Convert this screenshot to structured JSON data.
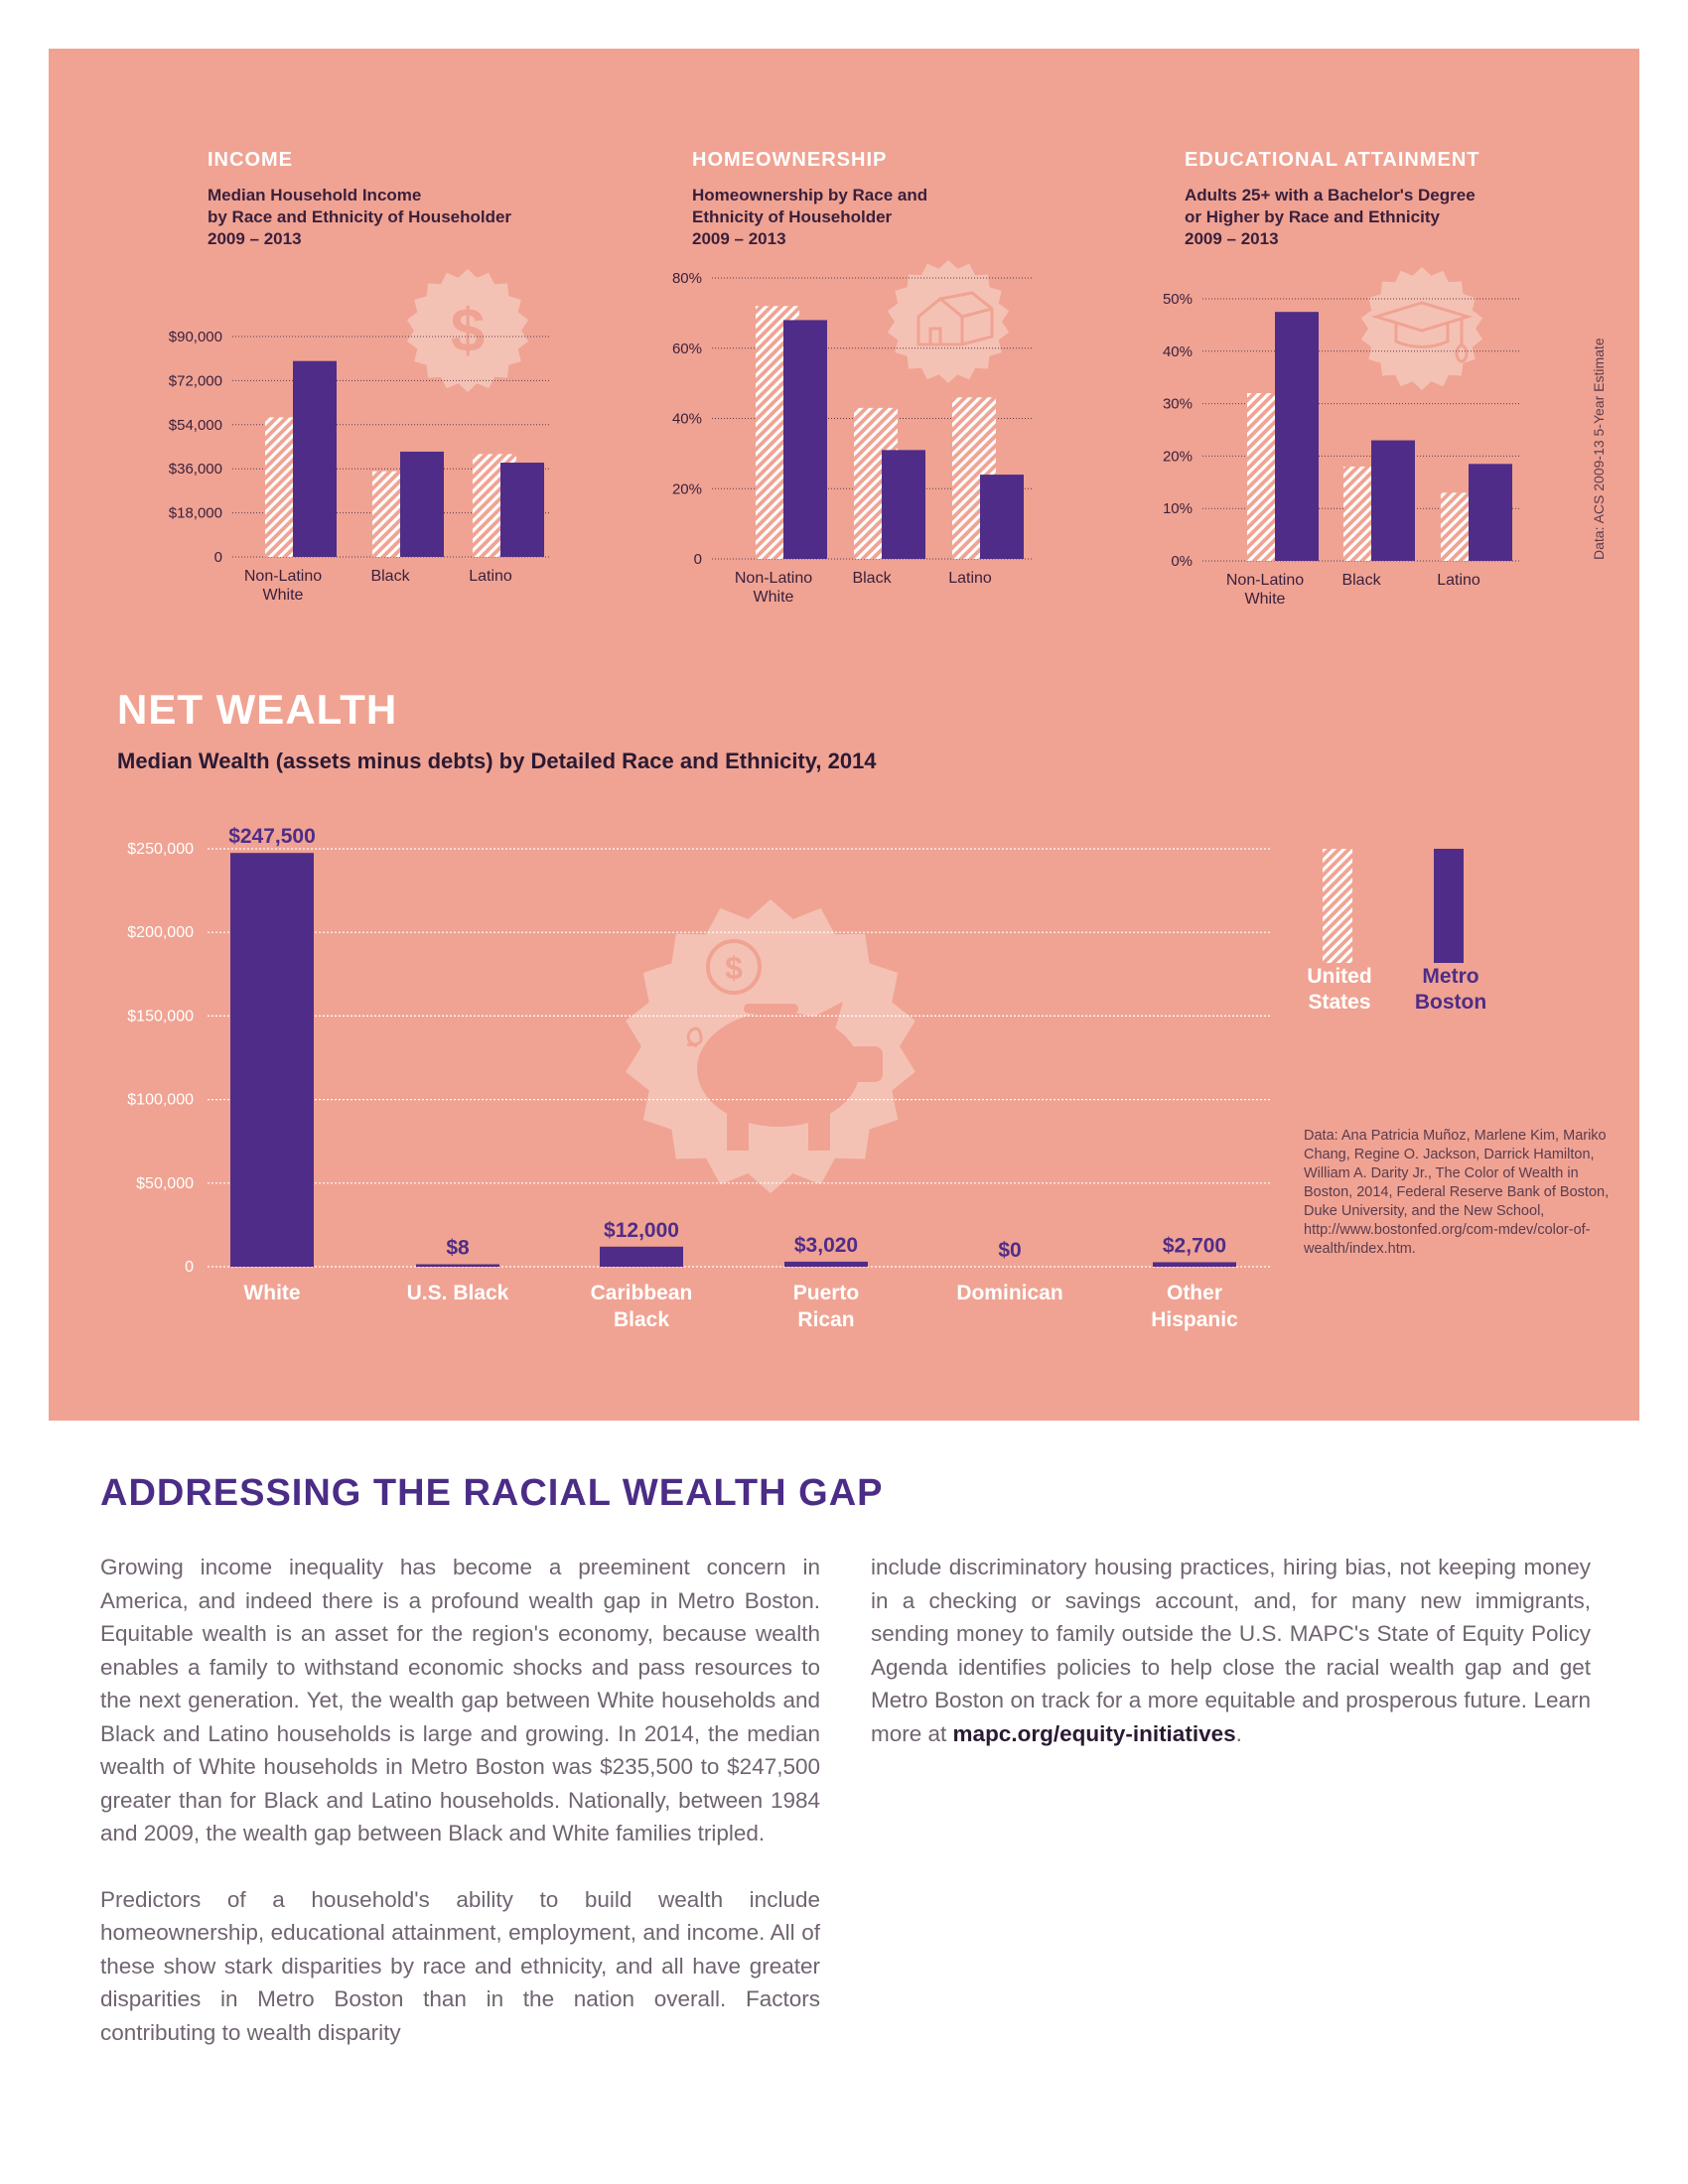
{
  "colors": {
    "panel": "#f0a393",
    "metro": "#4f2c87",
    "us_hatch": "#ffffff",
    "title_purple": "#4b2c86"
  },
  "sections": {
    "income": {
      "title": "INCOME",
      "subtitle": [
        "Median Household Income",
        "by Race and Ethnicity of Householder",
        "2009 – 2013"
      ],
      "icon": "dollar-icon"
    },
    "homeownership": {
      "title": "HOMEOWNERSHIP",
      "subtitle": [
        "Homeownership by Race and",
        "Ethnicity of Householder",
        "2009 – 2013"
      ],
      "icon": "house-icon"
    },
    "education": {
      "title": "EDUCATIONAL ATTAINMENT",
      "subtitle": [
        "Adults 25+ with a Bachelor's Degree",
        "or Higher by Race and Ethnicity",
        "2009 – 2013"
      ],
      "icon": "graduation-cap-icon"
    },
    "source": "Data: ACS 2009-13 5-Year Estimate"
  },
  "net_wealth": {
    "title": "NET WEALTH",
    "subtitle": "Median Wealth (assets minus debts) by Detailed Race and Ethnicity, 2014",
    "icon": "piggy-bank-icon",
    "legend": {
      "us": [
        "United",
        "States"
      ],
      "metro": [
        "Metro",
        "Boston"
      ]
    },
    "source": "Data: Ana Patricia Muñoz, Marlene Kim, Mariko Chang, Regine O. Jackson, Darrick Hamilton, William A. Darity Jr., The Color of Wealth in Boston, 2014, Federal Reserve Bank of Boston, Duke University, and the New School, http://www.bostonfed.org/com-mdev/color-of-wealth/index.htm."
  },
  "chart_data": [
    {
      "id": "income",
      "type": "bar",
      "categories": [
        [
          "Non-Latino",
          "White"
        ],
        [
          "Black"
        ],
        [
          "Latino"
        ]
      ],
      "series": [
        {
          "name": "United States",
          "values": [
            57000,
            35000,
            42000
          ]
        },
        {
          "name": "Metro Boston",
          "values": [
            80000,
            43000,
            38500
          ]
        }
      ],
      "ylim": [
        0,
        90000
      ],
      "yticks": [
        0,
        18000,
        36000,
        54000,
        72000,
        90000
      ],
      "ytick_labels": [
        "0",
        "$18,000",
        "$36,000",
        "$54,000",
        "$72,000",
        "$90,000"
      ]
    },
    {
      "id": "homeownership",
      "type": "bar",
      "categories": [
        [
          "Non-Latino",
          "White"
        ],
        [
          "Black"
        ],
        [
          "Latino"
        ]
      ],
      "series": [
        {
          "name": "United States",
          "values": [
            72,
            43,
            46
          ]
        },
        {
          "name": "Metro Boston",
          "values": [
            68,
            31,
            24
          ]
        }
      ],
      "ylim": [
        0,
        80
      ],
      "yticks": [
        0,
        20,
        40,
        60,
        80
      ],
      "ytick_labels": [
        "0",
        "20%",
        "40%",
        "60%",
        "80%"
      ]
    },
    {
      "id": "education",
      "type": "bar",
      "categories": [
        [
          "Non-Latino",
          "White"
        ],
        [
          "Black"
        ],
        [
          "Latino"
        ]
      ],
      "series": [
        {
          "name": "United States",
          "values": [
            32,
            18,
            13
          ]
        },
        {
          "name": "Metro Boston",
          "values": [
            47.5,
            23,
            18.5
          ]
        }
      ],
      "ylim": [
        0,
        50
      ],
      "yticks": [
        0,
        10,
        20,
        30,
        40,
        50
      ],
      "ytick_labels": [
        "0%",
        "10%",
        "20%",
        "30%",
        "40%",
        "50%"
      ]
    },
    {
      "id": "net_wealth",
      "type": "bar",
      "categories": [
        [
          "White"
        ],
        [
          "U.S. Black"
        ],
        [
          "Caribbean",
          "Black"
        ],
        [
          "Puerto",
          "Rican"
        ],
        [
          "Dominican"
        ],
        [
          "Other",
          "Hispanic"
        ]
      ],
      "series": [
        {
          "name": "Metro Boston",
          "values": [
            247500,
            8,
            12000,
            3020,
            0,
            2700
          ],
          "labels": [
            "$247,500",
            "$8",
            "$12,000",
            "$3,020",
            "$0",
            "$2,700"
          ]
        }
      ],
      "ylim": [
        0,
        250000
      ],
      "yticks": [
        0,
        50000,
        100000,
        150000,
        200000,
        250000
      ],
      "ytick_labels": [
        "0",
        "$50,000",
        "$100,000",
        "$150,000",
        "$200,000",
        "$250,000"
      ]
    }
  ],
  "article": {
    "title": "ADDRESSING THE RACIAL WEALTH GAP",
    "col1": [
      "Growing income inequality has become a preeminent concern in America, and indeed there is a profound wealth gap in Metro Boston. Equitable wealth is an asset for the region's economy, because wealth enables a family to withstand economic shocks and pass resources to the next generation. Yet, the wealth gap between White households and Black and Latino households is large and growing. In 2014, the median wealth of White households in Metro Boston was $235,500 to $247,500 greater than for Black and Latino households. Nationally, between 1984 and 2009, the wealth gap between Black and White families tripled.",
      "Predictors of a household's ability to build wealth include homeownership, educational attainment, employment, and income. All of these show stark disparities by race and ethnicity, and all have greater disparities in Metro Boston than in the nation overall. Factors contributing to wealth disparity"
    ],
    "col2": "include discriminatory housing practices, hiring bias, not keeping money in a checking or savings account, and, for many new immigrants, sending money to family outside the U.S. MAPC's State of Equity Policy Agenda identifies policies to help close the racial wealth gap and get Metro Boston on track for a more equitable and prosperous future. Learn more at",
    "link": "mapc.org/equity-initiatives",
    "col2_end": "."
  }
}
